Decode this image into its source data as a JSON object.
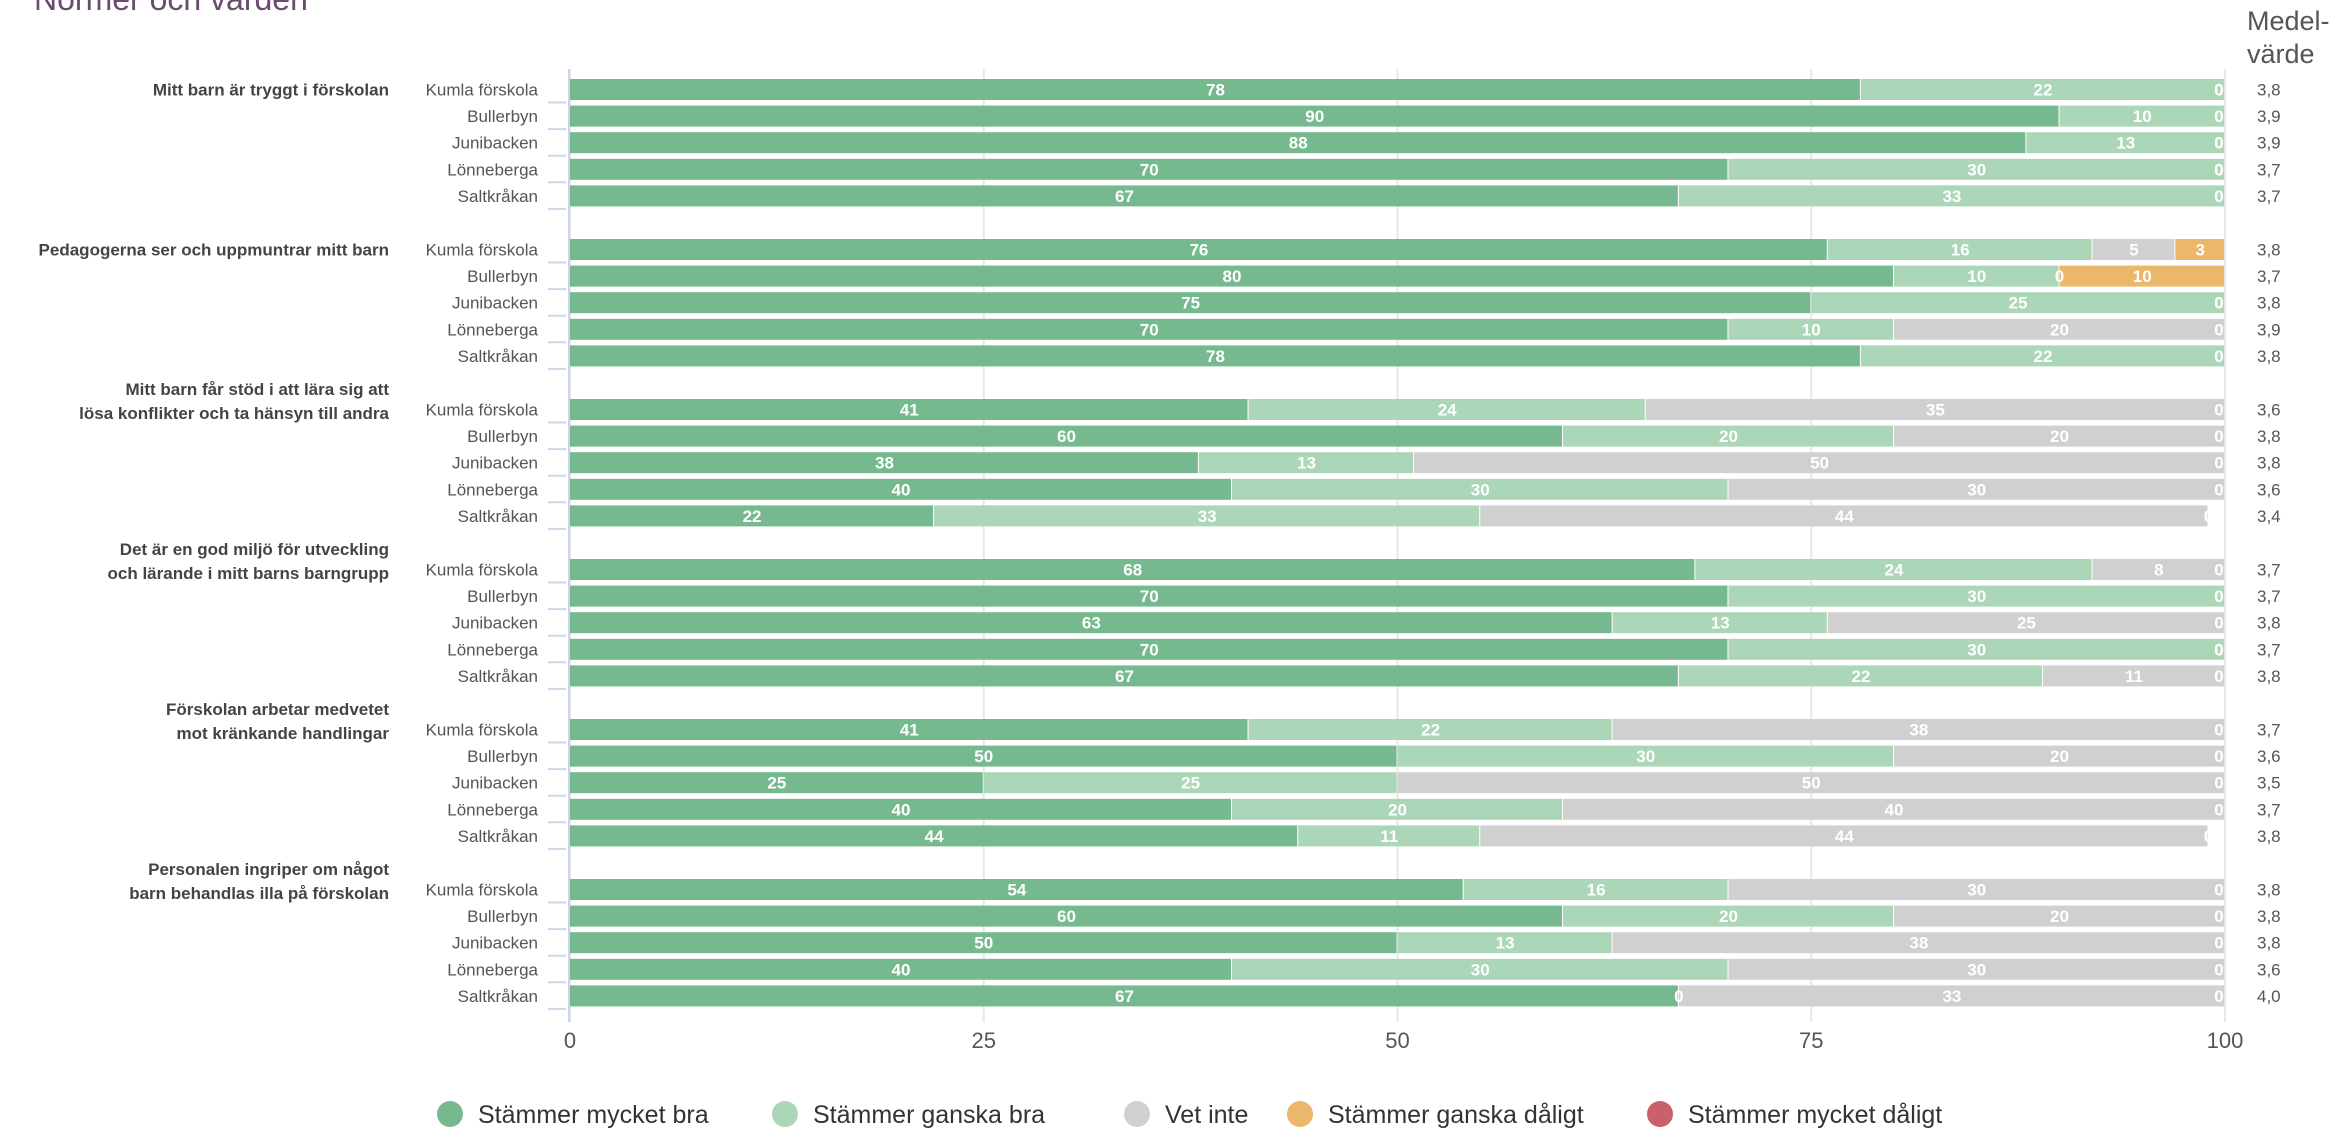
{
  "header": {
    "title": "Normer och värden",
    "mean_label_line1": "Medel-",
    "mean_label_line2": "värde"
  },
  "colors": {
    "Stämmer mycket bra": "#77b98f",
    "Stämmer ganska bra": "#acd6b8",
    "Vet inte": "#d0d0d0",
    "Stämmer ganska dåligt": "#ebb76a",
    "Stämmer mycket dåligt": "#c9606a",
    "title": "#6a4a6e",
    "grid": "#e6e6ef",
    "axis": "#ccd6eb",
    "label": "#555555",
    "question": "#444444"
  },
  "chart_data": {
    "type": "bar",
    "orientation": "horizontal",
    "stacked": true,
    "xlim": [
      0,
      100
    ],
    "x_ticks": [
      0,
      25,
      50,
      75,
      100
    ],
    "legend_position": "bottom-center",
    "series_names": [
      "Stämmer mycket bra",
      "Stämmer ganska bra",
      "Vet inte",
      "Stämmer ganska dåligt",
      "Stämmer mycket dåligt"
    ],
    "groups": [
      {
        "question_lines": [
          "Mitt barn är tryggt i förskolan"
        ],
        "rows": [
          {
            "school": "Kumla förskola",
            "values": [
              78,
              22,
              0,
              0,
              0
            ],
            "mean": "3,8"
          },
          {
            "school": "Bullerbyn",
            "values": [
              90,
              10,
              0,
              0,
              0
            ],
            "mean": "3,9"
          },
          {
            "school": "Junibacken",
            "values": [
              88,
              13,
              0,
              0,
              0
            ],
            "mean": "3,9"
          },
          {
            "school": "Lönneberga",
            "values": [
              70,
              30,
              0,
              0,
              0
            ],
            "mean": "3,7"
          },
          {
            "school": "Saltkråkan",
            "values": [
              67,
              33,
              0,
              0,
              0
            ],
            "mean": "3,7"
          }
        ]
      },
      {
        "question_lines": [
          "Pedagogerna ser och uppmuntrar mitt barn"
        ],
        "rows": [
          {
            "school": "Kumla förskola",
            "values": [
              76,
              16,
              5,
              3,
              0
            ],
            "mean": "3,8"
          },
          {
            "school": "Bullerbyn",
            "values": [
              80,
              10,
              0,
              10,
              0
            ],
            "mean": "3,7"
          },
          {
            "school": "Junibacken",
            "values": [
              75,
              25,
              0,
              0,
              0
            ],
            "mean": "3,8"
          },
          {
            "school": "Lönneberga",
            "values": [
              70,
              10,
              20,
              0,
              0
            ],
            "mean": "3,9"
          },
          {
            "school": "Saltkråkan",
            "values": [
              78,
              22,
              0,
              0,
              0
            ],
            "mean": "3,8"
          }
        ]
      },
      {
        "question_lines": [
          "Mitt barn får stöd i att lära sig att",
          "lösa konflikter och ta hänsyn till andra"
        ],
        "rows": [
          {
            "school": "Kumla förskola",
            "values": [
              41,
              24,
              35,
              0,
              0
            ],
            "mean": "3,6"
          },
          {
            "school": "Bullerbyn",
            "values": [
              60,
              20,
              20,
              0,
              0
            ],
            "mean": "3,8"
          },
          {
            "school": "Junibacken",
            "values": [
              38,
              13,
              50,
              0,
              0
            ],
            "mean": "3,8"
          },
          {
            "school": "Lönneberga",
            "values": [
              40,
              30,
              30,
              0,
              0
            ],
            "mean": "3,6"
          },
          {
            "school": "Saltkråkan",
            "values": [
              22,
              33,
              44,
              0,
              0
            ],
            "mean": "3,4"
          }
        ]
      },
      {
        "question_lines": [
          "Det är en god miljö för utveckling",
          "och lärande i mitt barns barngrupp"
        ],
        "rows": [
          {
            "school": "Kumla förskola",
            "values": [
              68,
              24,
              8,
              0,
              0
            ],
            "mean": "3,7"
          },
          {
            "school": "Bullerbyn",
            "values": [
              70,
              30,
              0,
              0,
              0
            ],
            "mean": "3,7"
          },
          {
            "school": "Junibacken",
            "values": [
              63,
              13,
              25,
              0,
              0
            ],
            "mean": "3,8"
          },
          {
            "school": "Lönneberga",
            "values": [
              70,
              30,
              0,
              0,
              0
            ],
            "mean": "3,7"
          },
          {
            "school": "Saltkråkan",
            "values": [
              67,
              22,
              11,
              0,
              0
            ],
            "mean": "3,8"
          }
        ]
      },
      {
        "question_lines": [
          "Förskolan arbetar medvetet",
          "mot kränkande handlingar"
        ],
        "rows": [
          {
            "school": "Kumla förskola",
            "values": [
              41,
              22,
              38,
              0,
              0
            ],
            "mean": "3,7"
          },
          {
            "school": "Bullerbyn",
            "values": [
              50,
              30,
              20,
              0,
              0
            ],
            "mean": "3,6"
          },
          {
            "school": "Junibacken",
            "values": [
              25,
              25,
              50,
              0,
              0
            ],
            "mean": "3,5"
          },
          {
            "school": "Lönneberga",
            "values": [
              40,
              20,
              40,
              0,
              0
            ],
            "mean": "3,7"
          },
          {
            "school": "Saltkråkan",
            "values": [
              44,
              11,
              44,
              0,
              0
            ],
            "mean": "3,8"
          }
        ]
      },
      {
        "question_lines": [
          "Personalen ingriper om något",
          "barn behandlas illa på förskolan"
        ],
        "rows": [
          {
            "school": "Kumla förskola",
            "values": [
              54,
              16,
              30,
              0,
              0
            ],
            "mean": "3,8"
          },
          {
            "school": "Bullerbyn",
            "values": [
              60,
              20,
              20,
              0,
              0
            ],
            "mean": "3,8"
          },
          {
            "school": "Junibacken",
            "values": [
              50,
              13,
              38,
              0,
              0
            ],
            "mean": "3,8"
          },
          {
            "school": "Lönneberga",
            "values": [
              40,
              30,
              30,
              0,
              0
            ],
            "mean": "3,6"
          },
          {
            "school": "Saltkråkan",
            "values": [
              67,
              0,
              33,
              0,
              0
            ],
            "mean": "4,0"
          }
        ]
      }
    ]
  }
}
